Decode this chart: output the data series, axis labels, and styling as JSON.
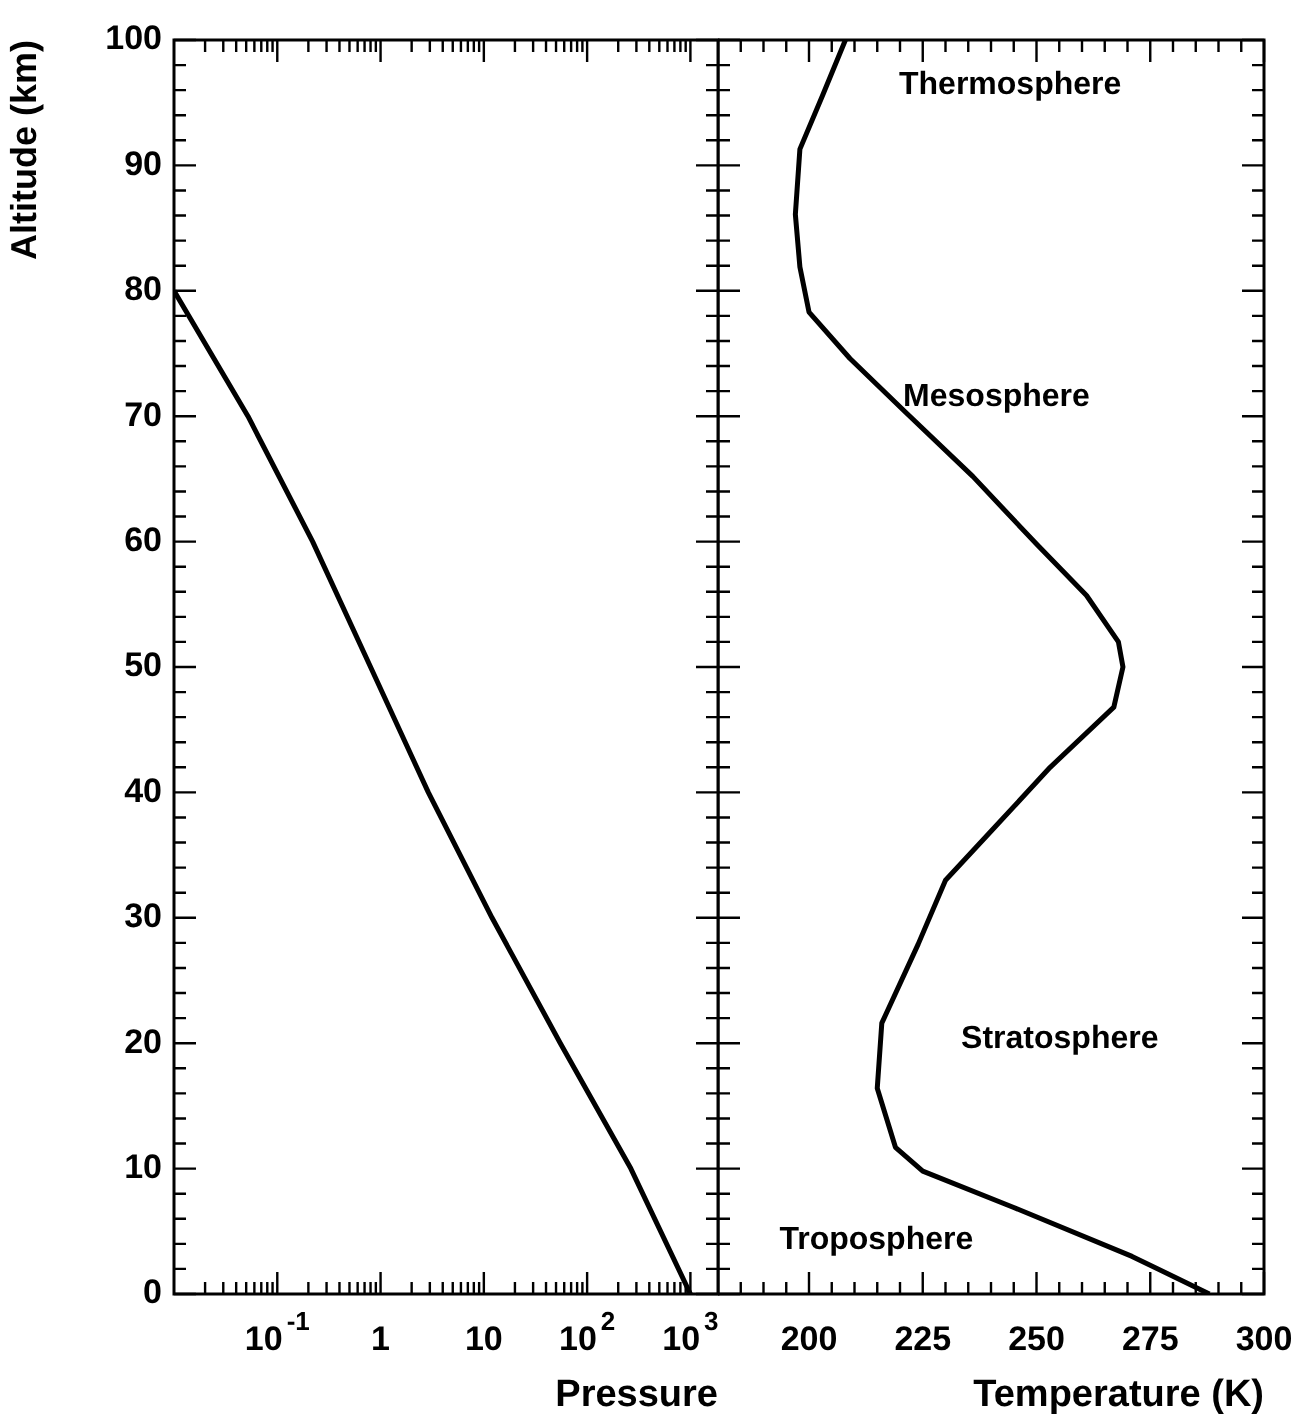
{
  "chart_data": [
    {
      "type": "line",
      "xlabel": "Pressure",
      "ylabel": "Altitude (km)",
      "log": "x",
      "marker": "none",
      "legend": false,
      "xlim": [
        0.01,
        1850
      ],
      "xticks": [
        {
          "value": 0.02,
          "label": null
        },
        {
          "value": 0.03,
          "label": null
        },
        {
          "value": 0.04,
          "label": null
        },
        {
          "value": 0.05,
          "label": null
        },
        {
          "value": 0.06,
          "label": null
        },
        {
          "value": 0.07,
          "label": null
        },
        {
          "value": 0.08,
          "label": null
        },
        {
          "value": 0.09,
          "label": null
        },
        {
          "value": 0.1,
          "label": "10$^{-1}$"
        },
        {
          "value": 0.2,
          "label": null
        },
        {
          "value": 0.3,
          "label": null
        },
        {
          "value": 0.4,
          "label": null
        },
        {
          "value": 0.5,
          "label": null
        },
        {
          "value": 0.6,
          "label": null
        },
        {
          "value": 0.7,
          "label": null
        },
        {
          "value": 0.8,
          "label": null
        },
        {
          "value": 0.9,
          "label": null
        },
        1,
        {
          "value": 2,
          "label": null
        },
        {
          "value": 3,
          "label": null
        },
        {
          "value": 4,
          "label": null
        },
        {
          "value": 5,
          "label": null
        },
        {
          "value": 6,
          "label": null
        },
        {
          "value": 7,
          "label": null
        },
        {
          "value": 8,
          "label": null
        },
        {
          "value": 9,
          "label": null
        },
        10,
        {
          "value": 20,
          "label": null
        },
        {
          "value": 30,
          "label": null
        },
        {
          "value": 40,
          "label": null
        },
        {
          "value": 50,
          "label": null
        },
        {
          "value": 60,
          "label": null
        },
        {
          "value": 70,
          "label": null
        },
        {
          "value": 80,
          "label": null
        },
        {
          "value": 90,
          "label": null
        },
        {
          "value": 100,
          "label": "10$^{2}$"
        },
        {
          "value": 200,
          "label": null
        },
        {
          "value": 300,
          "label": null
        },
        {
          "value": 400,
          "label": null
        },
        {
          "value": 500,
          "label": null
        },
        {
          "value": 600,
          "label": null
        },
        {
          "value": 700,
          "label": null
        },
        {
          "value": 800,
          "label": null
        },
        {
          "value": 900,
          "label": null
        },
        {
          "value": 1000,
          "label": "10$^{3}$"
        }
      ],
      "ylim": [
        0,
        100
      ],
      "yticks": [
        0,
        {
          "value": 2,
          "label": null
        },
        {
          "value": 4,
          "label": null
        },
        {
          "value": 6,
          "label": null
        },
        {
          "value": 8,
          "label": null
        },
        10,
        {
          "value": 12,
          "label": null
        },
        {
          "value": 14,
          "label": null
        },
        {
          "value": 16,
          "label": null
        },
        {
          "value": 18,
          "label": null
        },
        20,
        {
          "value": 22,
          "label": null
        },
        {
          "value": 24,
          "label": null
        },
        {
          "value": 26,
          "label": null
        },
        {
          "value": 28,
          "label": null
        },
        30,
        {
          "value": 32,
          "label": null
        },
        {
          "value": 34,
          "label": null
        },
        {
          "value": 36,
          "label": null
        },
        {
          "value": 38,
          "label": null
        },
        40,
        {
          "value": 42,
          "label": null
        },
        {
          "value": 44,
          "label": null
        },
        {
          "value": 46,
          "label": null
        },
        {
          "value": 48,
          "label": null
        },
        50,
        {
          "value": 52,
          "label": null
        },
        {
          "value": 54,
          "label": null
        },
        {
          "value": 56,
          "label": null
        },
        {
          "value": 58,
          "label": null
        },
        60,
        {
          "value": 62,
          "label": null
        },
        {
          "value": 64,
          "label": null
        },
        {
          "value": 66,
          "label": null
        },
        {
          "value": 68,
          "label": null
        },
        70,
        {
          "value": 72,
          "label": null
        },
        {
          "value": 74,
          "label": null
        },
        {
          "value": 76,
          "label": null
        },
        {
          "value": 78,
          "label": null
        },
        80,
        {
          "value": 82,
          "label": null
        },
        {
          "value": 84,
          "label": null
        },
        {
          "value": 86,
          "label": null
        },
        {
          "value": 88,
          "label": null
        },
        90,
        {
          "value": 92,
          "label": null
        },
        {
          "value": 94,
          "label": null
        },
        {
          "value": 96,
          "label": null
        },
        {
          "value": 98,
          "label": null
        },
        100
      ],
      "series": [
        {
          "color": "#000000",
          "x": [
            1000,
            265,
            55,
            12,
            2.9,
            0.8,
            0.22,
            0.052,
            0.01
          ],
          "values": [
            0,
            10,
            20,
            30,
            40,
            50,
            60,
            70,
            80
          ]
        }
      ]
    },
    {
      "type": "line",
      "xlabel": "Temperature (K)",
      "marker": "none",
      "legend": false,
      "tick_labels": "x",
      "xlim": [
        180,
        300
      ],
      "xticks": [
        {
          "value": 185,
          "label": null
        },
        {
          "value": 190,
          "label": null
        },
        {
          "value": 195,
          "label": null
        },
        200,
        {
          "value": 205,
          "label": null
        },
        {
          "value": 210,
          "label": null
        },
        {
          "value": 215,
          "label": null
        },
        {
          "value": 220,
          "label": null
        },
        225,
        {
          "value": 230,
          "label": null
        },
        {
          "value": 235,
          "label": null
        },
        {
          "value": 240,
          "label": null
        },
        {
          "value": 245,
          "label": null
        },
        250,
        {
          "value": 255,
          "label": null
        },
        {
          "value": 260,
          "label": null
        },
        {
          "value": 265,
          "label": null
        },
        {
          "value": 270,
          "label": null
        },
        275,
        {
          "value": 280,
          "label": null
        },
        {
          "value": 285,
          "label": null
        },
        {
          "value": 290,
          "label": null
        },
        {
          "value": 295,
          "label": null
        },
        300
      ],
      "ylim": [
        0,
        100
      ],
      "yticks": [
        0,
        {
          "value": 2,
          "label": null
        },
        {
          "value": 4,
          "label": null
        },
        {
          "value": 6,
          "label": null
        },
        {
          "value": 8,
          "label": null
        },
        10,
        {
          "value": 12,
          "label": null
        },
        {
          "value": 14,
          "label": null
        },
        {
          "value": 16,
          "label": null
        },
        {
          "value": 18,
          "label": null
        },
        20,
        {
          "value": 22,
          "label": null
        },
        {
          "value": 24,
          "label": null
        },
        {
          "value": 26,
          "label": null
        },
        {
          "value": 28,
          "label": null
        },
        30,
        {
          "value": 32,
          "label": null
        },
        {
          "value": 34,
          "label": null
        },
        {
          "value": 36,
          "label": null
        },
        {
          "value": 38,
          "label": null
        },
        40,
        {
          "value": 42,
          "label": null
        },
        {
          "value": 44,
          "label": null
        },
        {
          "value": 46,
          "label": null
        },
        {
          "value": 48,
          "label": null
        },
        50,
        {
          "value": 52,
          "label": null
        },
        {
          "value": 54,
          "label": null
        },
        {
          "value": 56,
          "label": null
        },
        {
          "value": 58,
          "label": null
        },
        60,
        {
          "value": 62,
          "label": null
        },
        {
          "value": 64,
          "label": null
        },
        {
          "value": 66,
          "label": null
        },
        {
          "value": 68,
          "label": null
        },
        70,
        {
          "value": 72,
          "label": null
        },
        {
          "value": 74,
          "label": null
        },
        {
          "value": 76,
          "label": null
        },
        {
          "value": 78,
          "label": null
        },
        80,
        {
          "value": 82,
          "label": null
        },
        {
          "value": 84,
          "label": null
        },
        {
          "value": 86,
          "label": null
        },
        {
          "value": 88,
          "label": null
        },
        90,
        {
          "value": 92,
          "label": null
        },
        {
          "value": 94,
          "label": null
        },
        {
          "value": 96,
          "label": null
        },
        {
          "value": 98,
          "label": null
        },
        100
      ],
      "series": [
        {
          "color": "#000000",
          "x": [
            288,
            271,
            245,
            225,
            219,
            215,
            216,
            224,
            230,
            240,
            253,
            267,
            269,
            268,
            261,
            250,
            236,
            221,
            209,
            200,
            198,
            197,
            198,
            203,
            208
          ],
          "values": [
            0,
            3,
            6.9,
            9.8,
            11.7,
            16.4,
            21.6,
            27.9,
            33,
            36.9,
            42,
            46.8,
            50,
            52,
            55.7,
            59.8,
            65.2,
            70.4,
            74.6,
            78.3,
            81.9,
            86.1,
            91.3,
            95.6,
            100
          ]
        }
      ],
      "annotations": [
        "Thermosphere",
        "Mesosphere",
        "Stratosphere",
        "Troposphere"
      ]
    }
  ]
}
